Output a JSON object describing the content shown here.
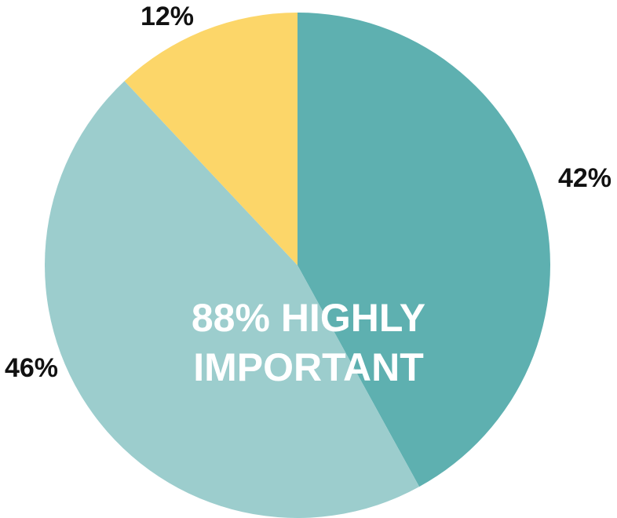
{
  "chart_data": {
    "type": "pie",
    "slices": [
      {
        "label": "42%",
        "value": 42,
        "color": "#5eb0b0"
      },
      {
        "label": "46%",
        "value": 46,
        "color": "#9ccdcd"
      },
      {
        "label": "12%",
        "value": 12,
        "color": "#fcd669"
      }
    ],
    "center_text": [
      "88% HIGHLY",
      "IMPORTANT"
    ],
    "start": "top",
    "direction": "clockwise"
  }
}
